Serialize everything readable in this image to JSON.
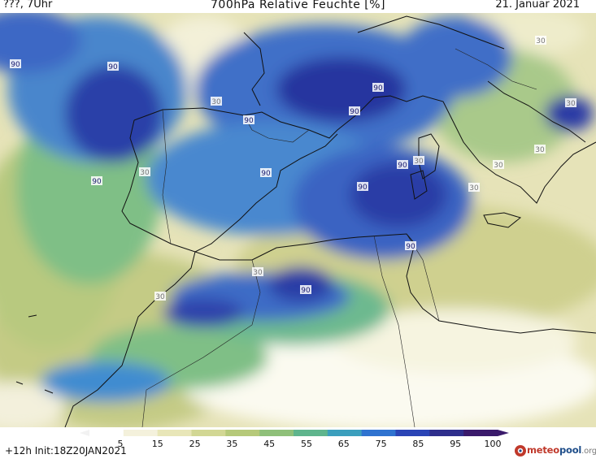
{
  "header": {
    "left": "???, 7Uhr",
    "title": "700hPa Relative Feuchte [%]",
    "date": "21. Januar 2021"
  },
  "footer": {
    "init": "+12h  Init:18Z20JAN2021"
  },
  "logo": {
    "text_part1": "meteo",
    "text_part2": "pool",
    "text_part3": ".org"
  },
  "contour_labels": [
    "90",
    "90",
    "30",
    "90",
    "90",
    "90",
    "90",
    "90",
    "90",
    "30",
    "90",
    "30",
    "30",
    "30",
    "30",
    "30",
    "30",
    "90",
    "90",
    "30",
    "30"
  ],
  "legend": {
    "ticks": [
      "5",
      "15",
      "25",
      "35",
      "45",
      "55",
      "65",
      "75",
      "85",
      "95",
      "100"
    ],
    "colors": [
      "#ffffff",
      "#f4f1dc",
      "#e8e6b8",
      "#d2d794",
      "#b6c97a",
      "#8fc07a",
      "#5fb58d",
      "#3c9fbd",
      "#2f73d0",
      "#2b45b6",
      "#2e2e8c",
      "#3a1a6b"
    ]
  },
  "colors": {
    "very_dry": "#ffffff",
    "dry": "#e9e7c0",
    "moist": "#3b8fd0",
    "very_moist": "#2335a8"
  }
}
